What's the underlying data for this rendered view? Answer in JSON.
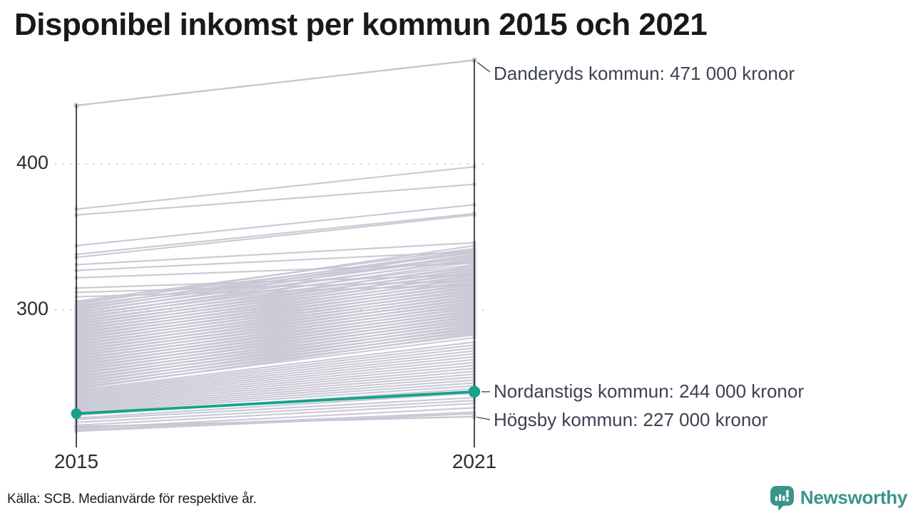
{
  "title": "Disponibel inkomst per kommun 2015 och 2021",
  "source": "Källa: SCB. Medianvärde för respektive år.",
  "brand": {
    "name": "Newsworthy",
    "icon": "bar-chart-speech-bubble-icon",
    "color": "#3a948b"
  },
  "colors": {
    "highlight": "#16a28b",
    "line_gray": "#c8c6d3",
    "axis": "#111111",
    "grid": "#d8d8d8",
    "connector": "#3c4250"
  },
  "chart_data": {
    "type": "line",
    "subtype": "slopegraph",
    "title": "Disponibel inkomst per kommun 2015 och 2021",
    "x_labels": [
      "2015",
      "2021"
    ],
    "y_ticks": [
      {
        "value": 400,
        "label": "400"
      },
      {
        "value": 300,
        "label": "300"
      }
    ],
    "ylim": [
      210,
      480
    ],
    "unit": "tusen kronor",
    "grid": "dotted-horizontal",
    "annotations": [
      {
        "name": "danderyd",
        "label": "Danderyds kommun: 471 000 kronor",
        "values": [
          440,
          471
        ],
        "highlighted": false
      },
      {
        "name": "nordanstig",
        "label": "Nordanstigs kommun: 244 000 kronor",
        "values": [
          229,
          244
        ],
        "highlighted": true
      },
      {
        "name": "hogsby",
        "label": "Högsby kommun: 227 000 kronor",
        "values": [
          220,
          227
        ],
        "highlighted": false
      }
    ],
    "background_series": [
      [
        369,
        398
      ],
      [
        365,
        386
      ],
      [
        344,
        372
      ],
      [
        338,
        366
      ],
      [
        336,
        365
      ],
      [
        331,
        346
      ],
      [
        327,
        340
      ],
      [
        322,
        332
      ],
      [
        315,
        324
      ],
      [
        312,
        320
      ],
      [
        309,
        317
      ],
      [
        306,
        342
      ],
      [
        305,
        339
      ],
      [
        304,
        344
      ],
      [
        303,
        337
      ],
      [
        302,
        341
      ],
      [
        301,
        336
      ],
      [
        300,
        340
      ],
      [
        299,
        334
      ],
      [
        298,
        338
      ],
      [
        297,
        331
      ],
      [
        296,
        335
      ],
      [
        295,
        329
      ],
      [
        294,
        333
      ],
      [
        293,
        327
      ],
      [
        292,
        330
      ],
      [
        291,
        325
      ],
      [
        290,
        328
      ],
      [
        289,
        323
      ],
      [
        288,
        326
      ],
      [
        287,
        321
      ],
      [
        286,
        324
      ],
      [
        285,
        319
      ],
      [
        284,
        322
      ],
      [
        283,
        317
      ],
      [
        282,
        320
      ],
      [
        281,
        315
      ],
      [
        280,
        318
      ],
      [
        279,
        313
      ],
      [
        278,
        316
      ],
      [
        277,
        311
      ],
      [
        276,
        314
      ],
      [
        275,
        309
      ],
      [
        274,
        312
      ],
      [
        273,
        307
      ],
      [
        272,
        310
      ],
      [
        271,
        305
      ],
      [
        270,
        308
      ],
      [
        269,
        303
      ],
      [
        268,
        306
      ],
      [
        267,
        301
      ],
      [
        266,
        304
      ],
      [
        265,
        299
      ],
      [
        264,
        302
      ],
      [
        263,
        297
      ],
      [
        262,
        300
      ],
      [
        261,
        295
      ],
      [
        260,
        298
      ],
      [
        259,
        293
      ],
      [
        258,
        296
      ],
      [
        257,
        291
      ],
      [
        256,
        294
      ],
      [
        255,
        289
      ],
      [
        254,
        292
      ],
      [
        253,
        287
      ],
      [
        252,
        290
      ],
      [
        251,
        285
      ],
      [
        250,
        288
      ],
      [
        249,
        283
      ],
      [
        248,
        286
      ],
      [
        247,
        281
      ],
      [
        246,
        284
      ],
      [
        245,
        278
      ],
      [
        244,
        276
      ],
      [
        243,
        274
      ],
      [
        242,
        272
      ],
      [
        241,
        270
      ],
      [
        240,
        268
      ],
      [
        239,
        266
      ],
      [
        238,
        264
      ],
      [
        237,
        262
      ],
      [
        236,
        260
      ],
      [
        235,
        258
      ],
      [
        234,
        256
      ],
      [
        233,
        254
      ],
      [
        232,
        252
      ],
      [
        231,
        250
      ],
      [
        230,
        248
      ],
      [
        228,
        246
      ],
      [
        226,
        243
      ],
      [
        225,
        240
      ],
      [
        223,
        238
      ],
      [
        221,
        236
      ],
      [
        219,
        233
      ],
      [
        218,
        230
      ],
      [
        217,
        229
      ]
    ]
  }
}
